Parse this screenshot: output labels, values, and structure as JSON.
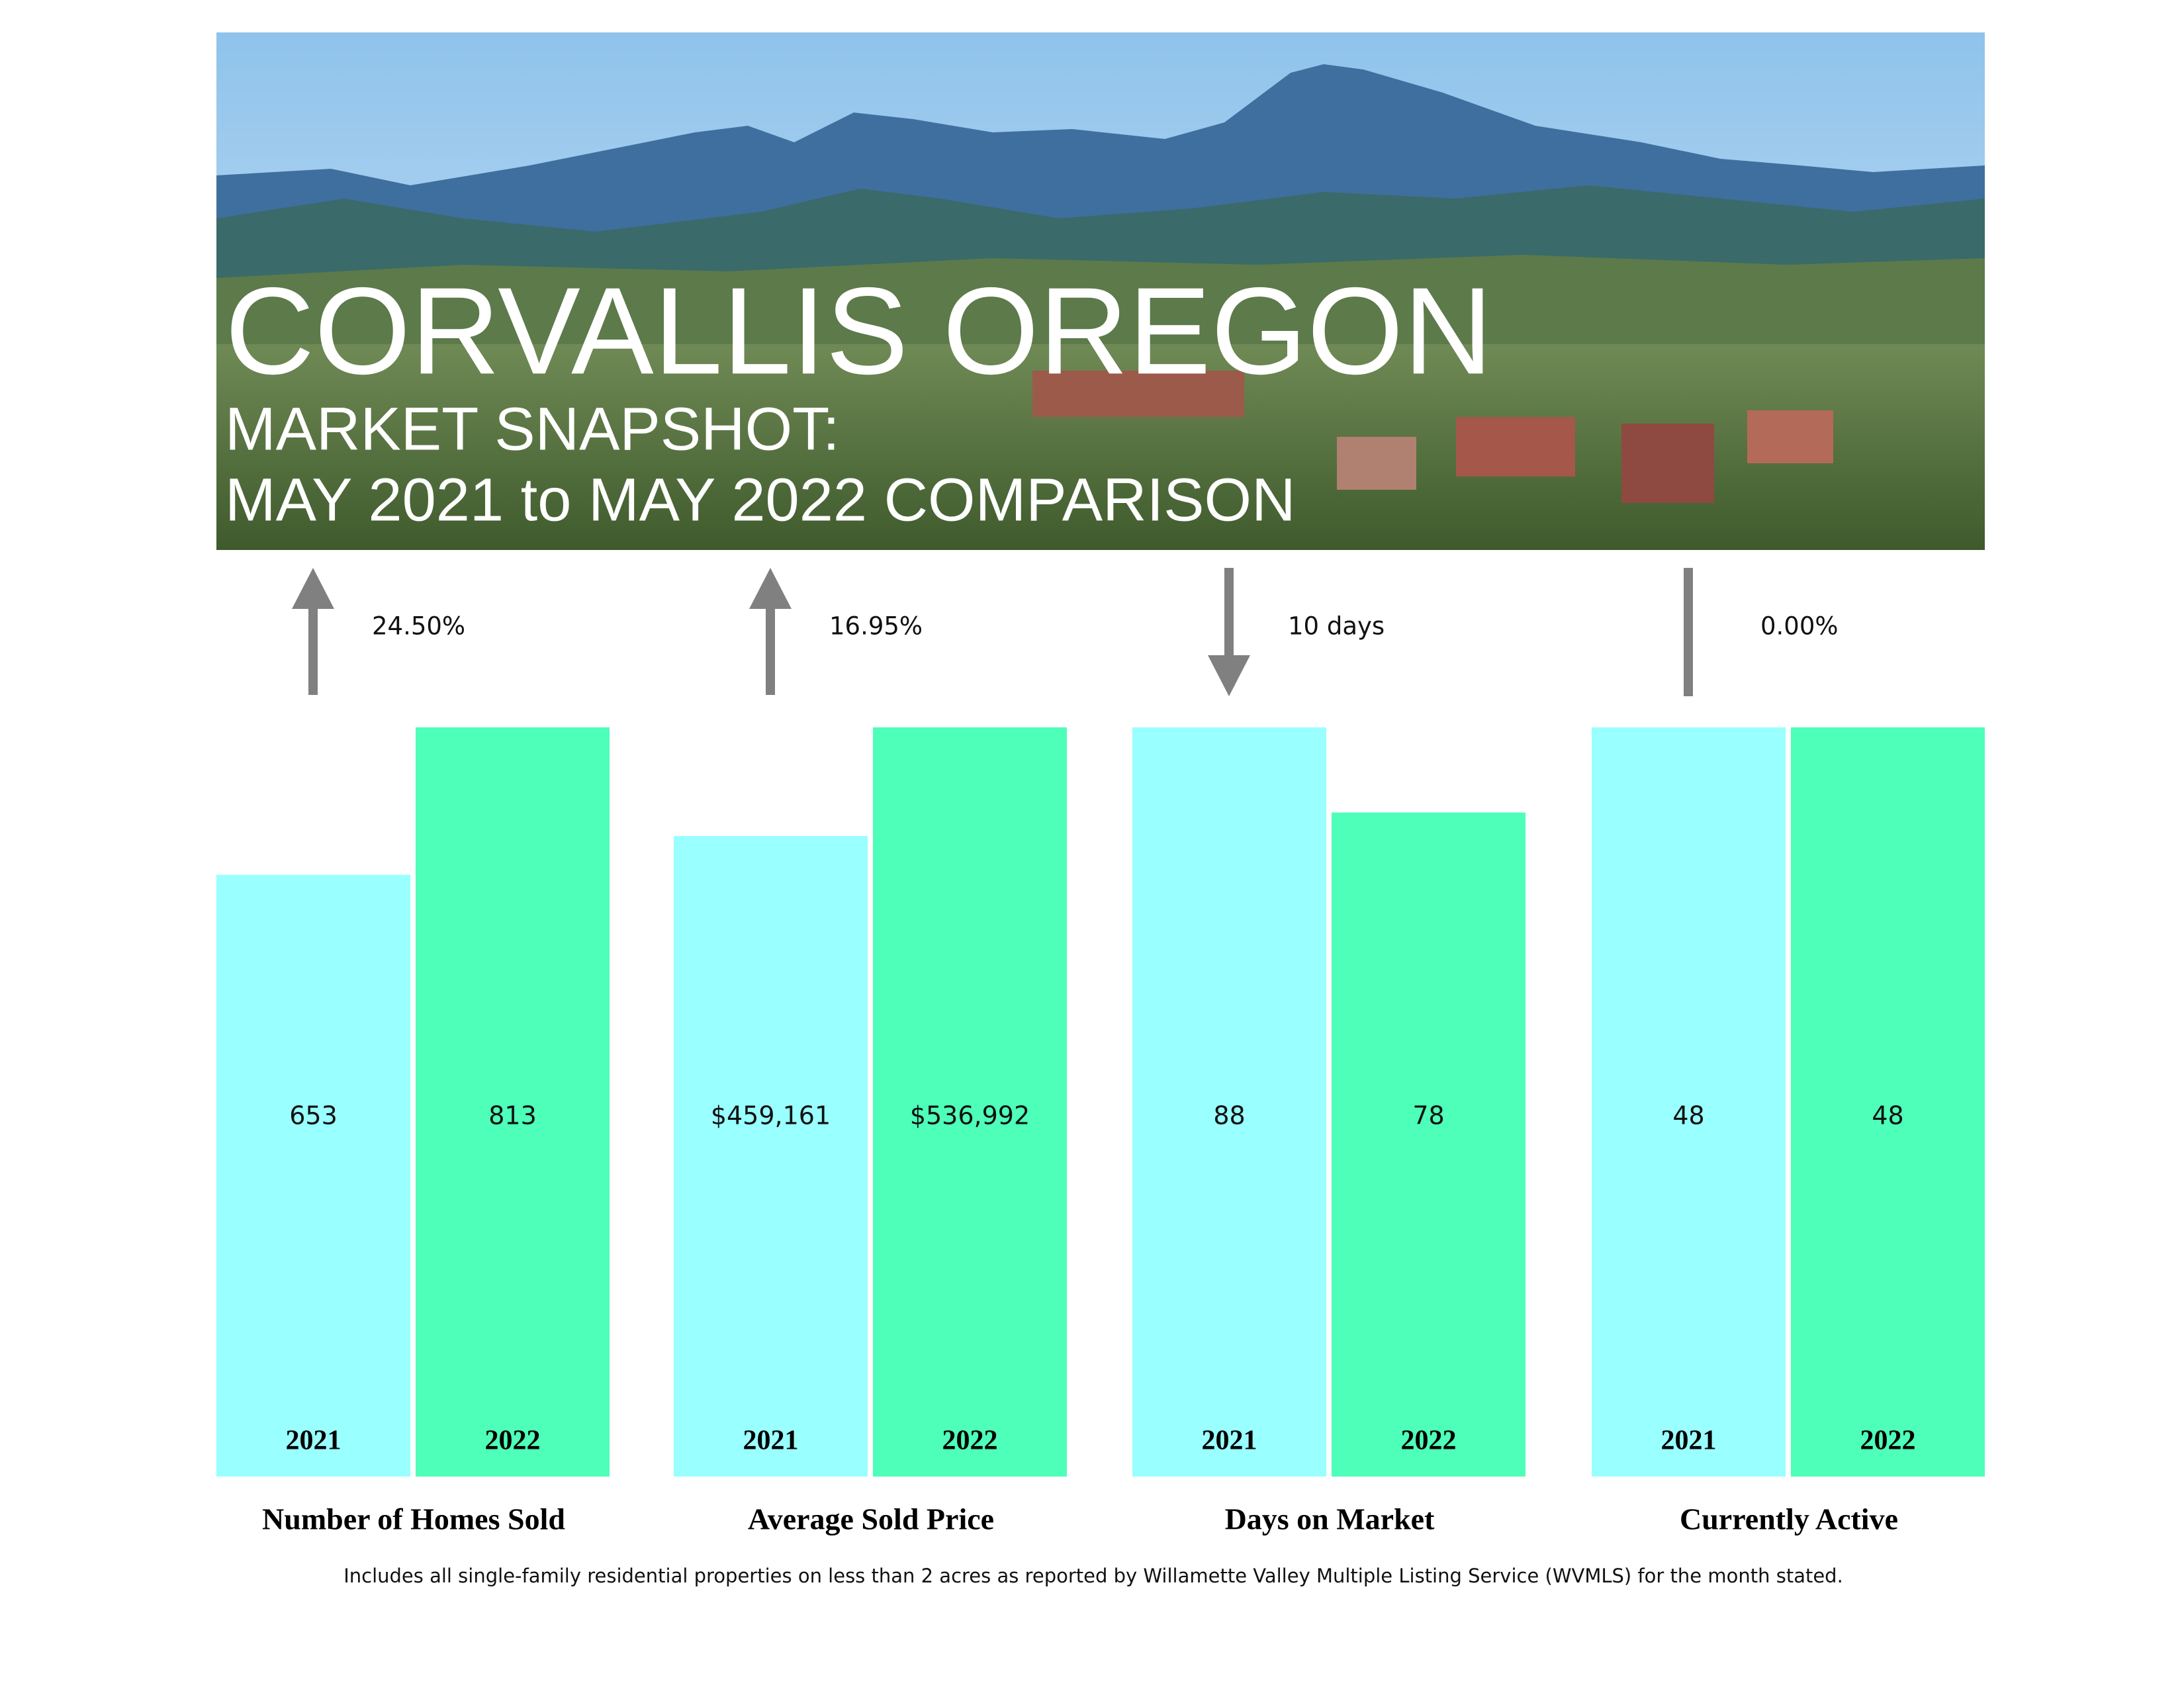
{
  "chart_data": {
    "type": "bar",
    "title": "CORVALLIS OREGON",
    "subtitle": [
      "MARKET SNAPSHOT:",
      "MAY 2021 to MAY 2022 COMPARISON"
    ],
    "categories": [
      "Number of Homes Sold",
      "Average Sold Price",
      "Days on Market",
      "Currently Active"
    ],
    "series": [
      {
        "name": "2021",
        "color": "#99ffff",
        "values": [
          653,
          459161,
          88,
          48
        ],
        "value_labels": [
          "653",
          "$459,161",
          "88",
          "48"
        ]
      },
      {
        "name": "2022",
        "color": "#4dffb8",
        "values": [
          813,
          536992,
          78,
          48
        ],
        "value_labels": [
          "813",
          "$536,992",
          "78",
          "48"
        ]
      }
    ],
    "changes": [
      {
        "value": 24.5,
        "label": "24.50%",
        "direction": "up"
      },
      {
        "value": 16.95,
        "label": "16.95%",
        "direction": "up"
      },
      {
        "value": 10,
        "label": "10 days",
        "direction": "down"
      },
      {
        "value": 0,
        "label": "0.00%",
        "direction": "none"
      }
    ],
    "footnote": "Includes all single-family residential properties on less than 2 acres as reported by Willamette Valley Multiple Listing Service (WVMLS) for the month stated."
  }
}
